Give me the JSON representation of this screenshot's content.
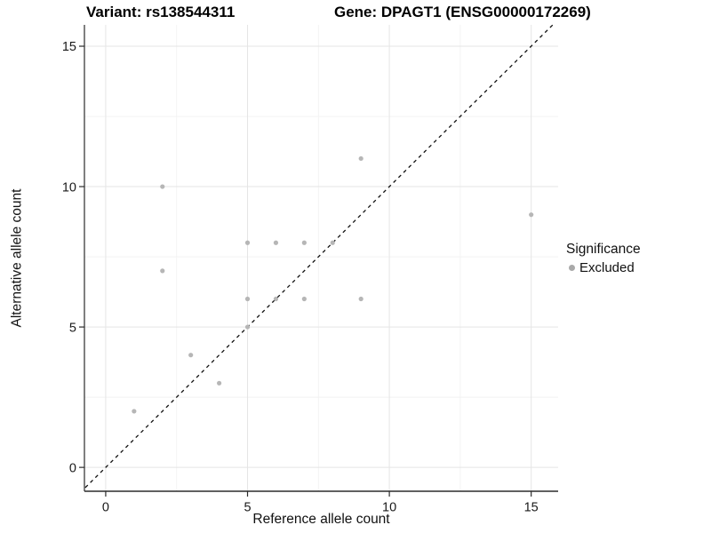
{
  "chart_data": {
    "type": "scatter",
    "title_left": "Variant: rs138544311",
    "title_right": "Gene: DPAGT1 (ENSG00000172269)",
    "xlabel": "Reference allele count",
    "ylabel": "Alternative allele count",
    "xlim": [
      -0.75,
      15.95
    ],
    "ylim": [
      -0.85,
      15.76
    ],
    "x_major_ticks": [
      0,
      5,
      10,
      15
    ],
    "y_major_ticks": [
      0,
      5,
      10,
      15
    ],
    "x_minor_gridlines": [
      2.5,
      7.5,
      12.5
    ],
    "y_minor_gridlines": [
      2.5,
      7.5,
      12.5
    ],
    "grid": true,
    "legend_position": "right",
    "identity_line": {
      "style": "dashed",
      "equation": "y = x",
      "from": -0.72,
      "to": 15.76
    },
    "series": [
      {
        "name": "Excluded",
        "color": "#b6b6b6",
        "points": [
          [
            1,
            2
          ],
          [
            2,
            7
          ],
          [
            2,
            10
          ],
          [
            3,
            4
          ],
          [
            4,
            3
          ],
          [
            5,
            5
          ],
          [
            5,
            6
          ],
          [
            5,
            8
          ],
          [
            6,
            6
          ],
          [
            6,
            8
          ],
          [
            7,
            6
          ],
          [
            7,
            8
          ],
          [
            8,
            8
          ],
          [
            9,
            6
          ],
          [
            9,
            11
          ],
          [
            15,
            9
          ]
        ]
      }
    ],
    "legend": {
      "title": "Significance",
      "items": [
        {
          "label": "Excluded",
          "color": "#a9a9a9"
        }
      ]
    },
    "colors": {
      "background": "#ffffff",
      "grid_major": "#e5e5e5",
      "grid_minor": "#f2f2f2",
      "axis": "#2b2b2b",
      "tick_label": "#1a1a1a",
      "identity_line": "#111111"
    }
  }
}
